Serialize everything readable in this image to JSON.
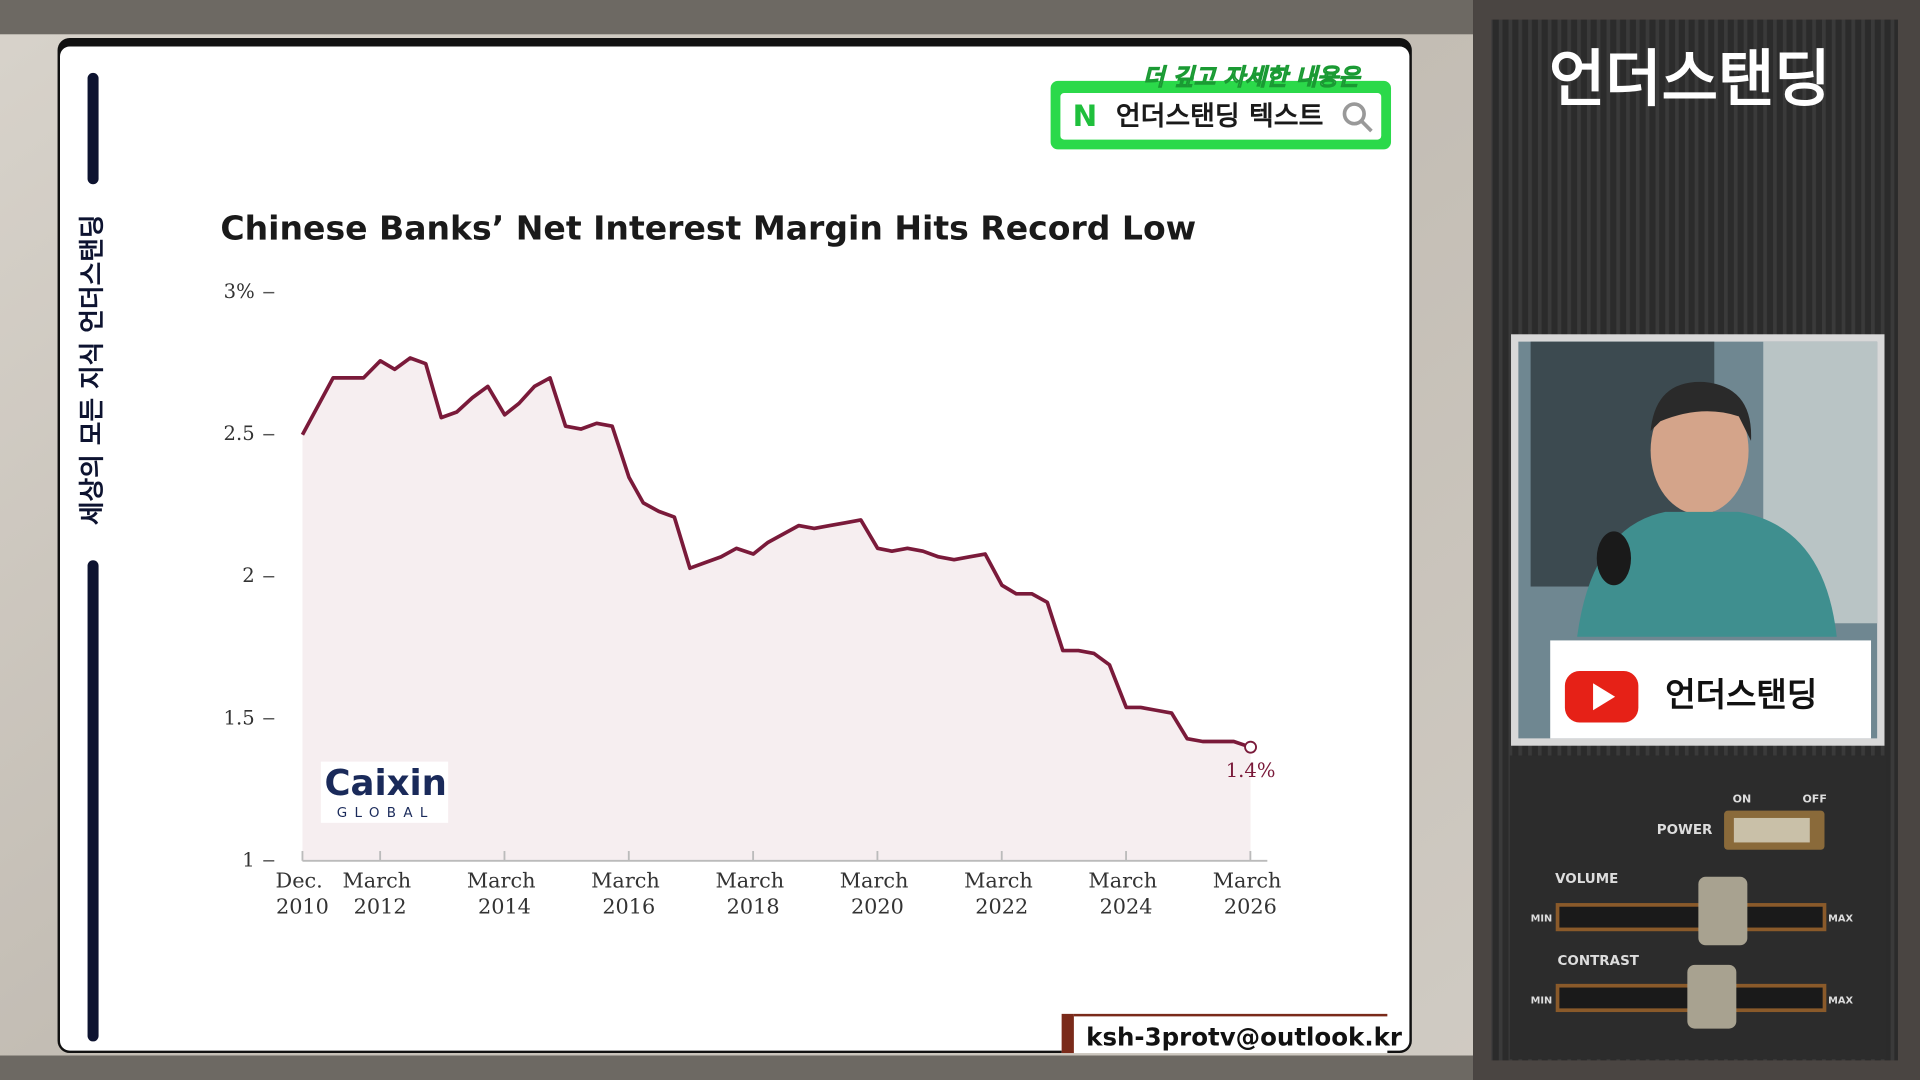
{
  "side_label": "세상의 모든 지식  언더스탠딩",
  "banner": {
    "top": "더 깊고 자세한 내용은",
    "badge": "N",
    "text": "언더스탠딩 텍스트"
  },
  "channel_title": "언더스탠딩",
  "youtube_label": "언더스탠딩",
  "logo": {
    "name": "Caixin",
    "sub": "GLOBAL"
  },
  "email": "ksh-3protv@outlook.kr",
  "console": {
    "on": "ON",
    "off": "OFF",
    "power": "POWER",
    "volume": "VOLUME",
    "contrast": "CONTRAST",
    "min": "MIN",
    "max": "MAX"
  },
  "chart_data": {
    "type": "line",
    "title": "Chinese Banks’ Net Interest Margin Hits Record Low",
    "annotation": "1.4%",
    "x": [
      2010.917,
      2011.41,
      2011.9,
      2012.17,
      2012.4,
      2012.65,
      2012.9,
      2013.15,
      2013.4,
      2013.65,
      2013.9,
      2014.17,
      2014.4,
      2014.65,
      2014.9,
      2015.15,
      2015.4,
      2015.65,
      2015.9,
      2016.17,
      2016.4,
      2016.65,
      2016.9,
      2017.15,
      2017.4,
      2017.65,
      2017.9,
      2018.17,
      2018.4,
      2018.65,
      2018.9,
      2019.15,
      2019.4,
      2019.65,
      2019.9,
      2020.17,
      2020.4,
      2020.65,
      2020.9,
      2021.15,
      2021.4,
      2021.65,
      2021.9,
      2022.17,
      2022.4,
      2022.65,
      2022.9,
      2023.15,
      2023.4,
      2023.65,
      2023.9,
      2024.17,
      2024.4,
      2024.65,
      2024.9,
      2025.15,
      2025.4,
      2025.65,
      2025.9,
      2026.17
    ],
    "series": [
      {
        "name": "Net interest margin",
        "color": "#7a1a3a",
        "values": [
          2.5,
          2.7,
          2.7,
          2.76,
          2.73,
          2.77,
          2.75,
          2.56,
          2.58,
          2.63,
          2.67,
          2.57,
          2.61,
          2.67,
          2.7,
          2.53,
          2.52,
          2.54,
          2.53,
          2.35,
          2.26,
          2.23,
          2.21,
          2.03,
          2.05,
          2.07,
          2.1,
          2.08,
          2.12,
          2.15,
          2.18,
          2.17,
          2.18,
          2.19,
          2.2,
          2.1,
          2.09,
          2.1,
          2.09,
          2.07,
          2.06,
          2.07,
          2.08,
          1.97,
          1.94,
          1.94,
          1.91,
          1.74,
          1.74,
          1.73,
          1.69,
          1.54,
          1.54,
          1.53,
          1.52,
          1.43,
          1.42,
          1.42,
          1.42,
          1.4
        ]
      }
    ],
    "area_color": "#f6eef0",
    "xlim": [
      2010.917,
      2026.44
    ],
    "xticks": [
      {
        "value": 2010.917,
        "label": "Dec. 2010"
      },
      {
        "value": 2012.167,
        "label": "March 2012"
      },
      {
        "value": 2014.167,
        "label": "March 2014"
      },
      {
        "value": 2016.167,
        "label": "March 2016"
      },
      {
        "value": 2018.167,
        "label": "March 2018"
      },
      {
        "value": 2020.167,
        "label": "March 2020"
      },
      {
        "value": 2022.167,
        "label": "March 2022"
      },
      {
        "value": 2024.167,
        "label": "March 2024"
      },
      {
        "value": 2026.167,
        "label": "March 2026"
      }
    ],
    "ylim": [
      1,
      3
    ],
    "yticks": [
      {
        "value": 3,
        "label": "3%"
      },
      2.5,
      2,
      1.5,
      1
    ]
  }
}
